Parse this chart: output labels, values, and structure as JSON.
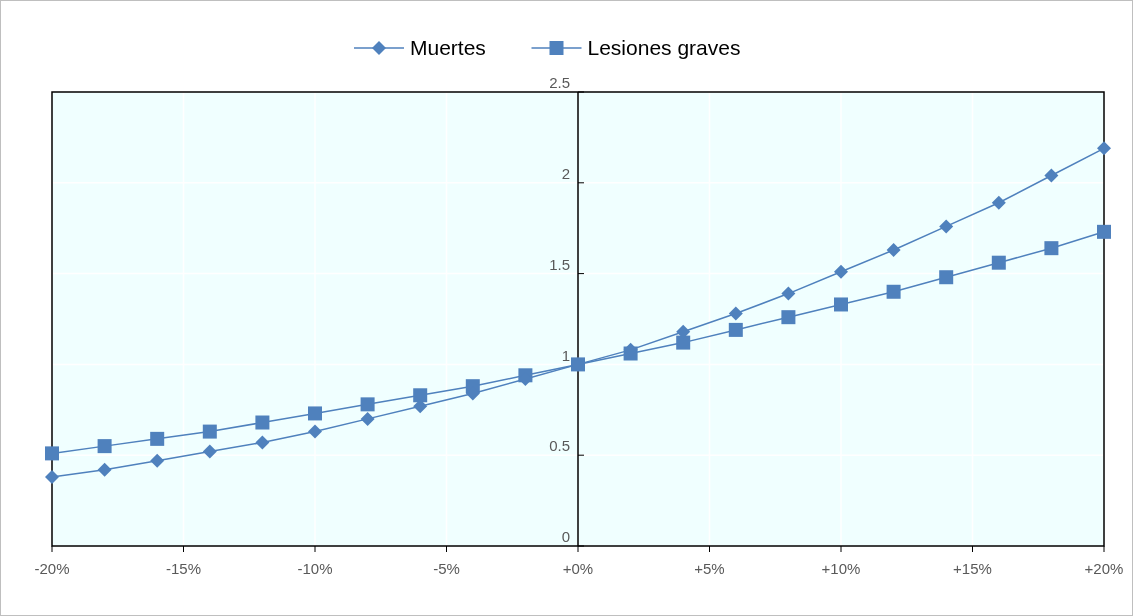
{
  "chart_data": {
    "type": "line",
    "x": [
      -20,
      -18,
      -16,
      -14,
      -12,
      -10,
      -8,
      -6,
      -4,
      -2,
      0,
      2,
      4,
      6,
      8,
      10,
      12,
      14,
      16,
      18,
      20
    ],
    "series": [
      {
        "name": "Muertes",
        "color": "#4f81bd",
        "marker": "diamond",
        "values": [
          0.38,
          0.42,
          0.47,
          0.52,
          0.57,
          0.63,
          0.7,
          0.77,
          0.84,
          0.92,
          1,
          1.08,
          1.18,
          1.28,
          1.39,
          1.51,
          1.63,
          1.76,
          1.89,
          2.04,
          2.19
        ]
      },
      {
        "name": "Lesiones graves",
        "color": "#4f81bd",
        "marker": "square",
        "values": [
          0.51,
          0.55,
          0.59,
          0.63,
          0.68,
          0.73,
          0.78,
          0.83,
          0.88,
          0.94,
          1,
          1.06,
          1.12,
          1.19,
          1.26,
          1.33,
          1.4,
          1.48,
          1.56,
          1.64,
          1.73
        ]
      }
    ],
    "xlim": [
      -20,
      20
    ],
    "xticks": [
      {
        "value": -20,
        "label": "-20%"
      },
      {
        "value": -15,
        "label": "-15%"
      },
      {
        "value": -10,
        "label": "-10%"
      },
      {
        "value": -5,
        "label": "-5%"
      },
      {
        "value": 0,
        "label": "+0%"
      },
      {
        "value": 5,
        "label": "+5%"
      },
      {
        "value": 10,
        "label": "+10%"
      },
      {
        "value": 15,
        "label": "+15%"
      },
      {
        "value": 20,
        "label": "+20%"
      }
    ],
    "ylim": [
      0,
      2.5
    ],
    "yticks": [
      0,
      0.5,
      1,
      1.5,
      2,
      2.5
    ],
    "grid": true,
    "legend": "top",
    "line_style": "solid"
  }
}
